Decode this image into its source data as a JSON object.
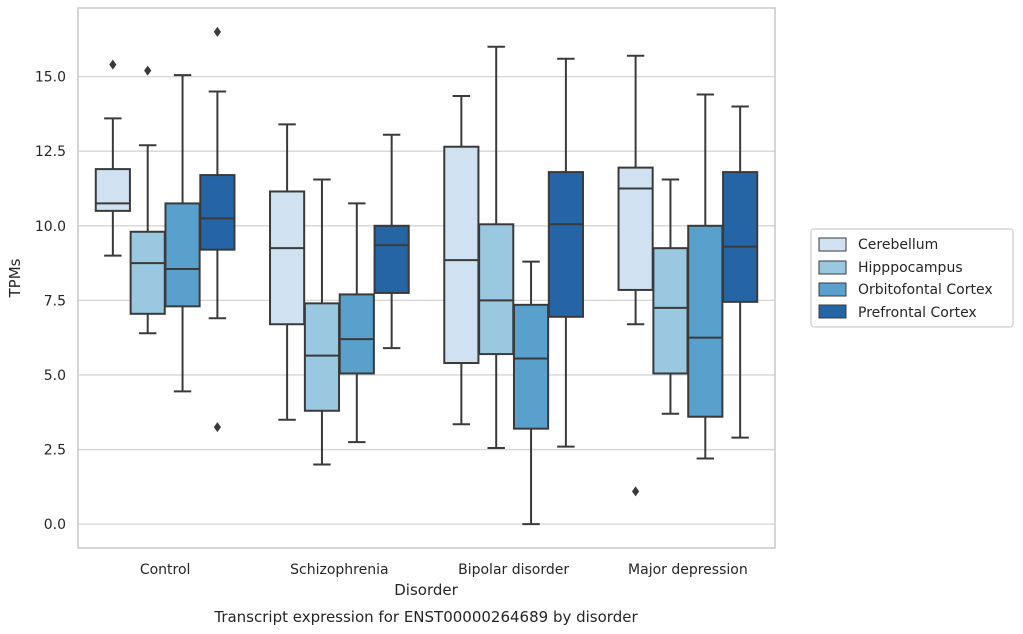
{
  "chart_data": {
    "type": "box",
    "title": "Transcript expression for ENST00000264689 by disorder",
    "xlabel": "Disorder",
    "ylabel": "TPMs",
    "ylim": [
      -0.8,
      17.3
    ],
    "yticks": [
      0.0,
      2.5,
      5.0,
      7.5,
      10.0,
      12.5,
      15.0
    ],
    "ytick_labels": [
      "0.0",
      "2.5",
      "5.0",
      "7.5",
      "10.0",
      "12.5",
      "15.0"
    ],
    "grid": true,
    "legend_position": "right",
    "categories": [
      "Control",
      "Schizophrenia",
      "Bipolar disorder",
      "Major depression"
    ],
    "series": [
      {
        "name": "Cerebellum",
        "color": "#d0e1f2",
        "boxes": [
          {
            "whisker_low": 9.0,
            "q1": 10.5,
            "median": 10.75,
            "q3": 11.9,
            "whisker_high": 13.6,
            "outliers": [
              15.4
            ]
          },
          {
            "whisker_low": 3.5,
            "q1": 6.7,
            "median": 9.25,
            "q3": 11.15,
            "whisker_high": 13.4,
            "outliers": []
          },
          {
            "whisker_low": 3.35,
            "q1": 5.4,
            "median": 8.85,
            "q3": 12.65,
            "whisker_high": 14.35,
            "outliers": []
          },
          {
            "whisker_low": 6.7,
            "q1": 7.85,
            "median": 11.25,
            "q3": 11.95,
            "whisker_high": 15.7,
            "outliers": [
              1.1
            ]
          }
        ]
      },
      {
        "name": "Hipppocampus",
        "color": "#9ac8e0",
        "boxes": [
          {
            "whisker_low": 6.4,
            "q1": 7.05,
            "median": 8.75,
            "q3": 9.8,
            "whisker_high": 12.7,
            "outliers": [
              15.2
            ]
          },
          {
            "whisker_low": 2.0,
            "q1": 3.8,
            "median": 5.65,
            "q3": 7.4,
            "whisker_high": 11.55,
            "outliers": []
          },
          {
            "whisker_low": 2.55,
            "q1": 5.7,
            "median": 7.5,
            "q3": 10.05,
            "whisker_high": 16.0,
            "outliers": []
          },
          {
            "whisker_low": 3.7,
            "q1": 5.05,
            "median": 7.25,
            "q3": 9.25,
            "whisker_high": 11.55,
            "outliers": []
          }
        ]
      },
      {
        "name": "Orbitofontal Cortex",
        "color": "#5aa0cc",
        "boxes": [
          {
            "whisker_low": 4.45,
            "q1": 7.3,
            "median": 8.55,
            "q3": 10.75,
            "whisker_high": 15.05,
            "outliers": []
          },
          {
            "whisker_low": 2.75,
            "q1": 5.05,
            "median": 6.2,
            "q3": 7.7,
            "whisker_high": 10.75,
            "outliers": []
          },
          {
            "whisker_low": 0.0,
            "q1": 3.2,
            "median": 5.55,
            "q3": 7.35,
            "whisker_high": 8.8,
            "outliers": []
          },
          {
            "whisker_low": 2.2,
            "q1": 3.6,
            "median": 6.25,
            "q3": 10.0,
            "whisker_high": 14.4,
            "outliers": []
          }
        ]
      },
      {
        "name": "Prefrontal Cortex",
        "color": "#2665a5",
        "boxes": [
          {
            "whisker_low": 6.9,
            "q1": 9.2,
            "median": 10.25,
            "q3": 11.7,
            "whisker_high": 14.5,
            "outliers": [
              16.5,
              3.25
            ]
          },
          {
            "whisker_low": 5.9,
            "q1": 7.75,
            "median": 9.35,
            "q3": 10.0,
            "whisker_high": 13.05,
            "outliers": []
          },
          {
            "whisker_low": 2.6,
            "q1": 6.95,
            "median": 10.05,
            "q3": 11.8,
            "whisker_high": 15.6,
            "outliers": []
          },
          {
            "whisker_low": 2.9,
            "q1": 7.45,
            "median": 9.3,
            "q3": 11.8,
            "whisker_high": 14.0,
            "outliers": []
          }
        ]
      }
    ],
    "styles": {
      "grid_color": "#d5d5d5",
      "frame_color": "#cccccc",
      "line_color": "#3a3a3a",
      "outlier_color": "#3a3a3a"
    }
  }
}
